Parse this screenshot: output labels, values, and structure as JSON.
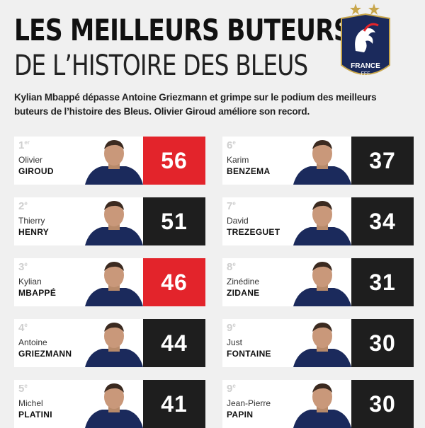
{
  "title_line1": "LES MEILLEURS BUTEURS",
  "title_line2": "DE L’HISTOIRE DES BLEUS",
  "badge": {
    "name": "FRANCE",
    "sub": "FFF"
  },
  "intro": "Kylian Mbappé dépasse Antoine Griezmann et grimpe sur le podium des meilleurs buteurs de l’histoire des Bleus. Olivier Giroud améliore son record.",
  "colors": {
    "red": "#e3242b",
    "dark": "#1e1e1e",
    "navy": "#1b2a5c"
  },
  "players": [
    {
      "rank": "1",
      "sup": "er",
      "first": "Olivier",
      "last": "GIROUD",
      "goals": "56",
      "highlight": true
    },
    {
      "rank": "2",
      "sup": "e",
      "first": "Thierry",
      "last": "HENRY",
      "goals": "51",
      "highlight": false
    },
    {
      "rank": "3",
      "sup": "e",
      "first": "Kylian",
      "last": "MBAPPÉ",
      "goals": "46",
      "highlight": true
    },
    {
      "rank": "4",
      "sup": "e",
      "first": "Antoine",
      "last": "GRIEZMANN",
      "goals": "44",
      "highlight": false
    },
    {
      "rank": "5",
      "sup": "e",
      "first": "Michel",
      "last": "PLATINI",
      "goals": "41",
      "highlight": false
    },
    {
      "rank": "6",
      "sup": "e",
      "first": "Karim",
      "last": "BENZEMA",
      "goals": "37",
      "highlight": false
    },
    {
      "rank": "7",
      "sup": "e",
      "first": "David",
      "last": "TREZEGUET",
      "goals": "34",
      "highlight": false
    },
    {
      "rank": "8",
      "sup": "e",
      "first": "Zinédine",
      "last": "ZIDANE",
      "goals": "31",
      "highlight": false
    },
    {
      "rank": "9",
      "sup": "e",
      "first": "Just",
      "last": "FONTAINE",
      "goals": "30",
      "highlight": false
    },
    {
      "rank": "9",
      "sup": "e",
      "first": "Jean-Pierre",
      "last": "PAPIN",
      "goals": "30",
      "highlight": false
    }
  ]
}
